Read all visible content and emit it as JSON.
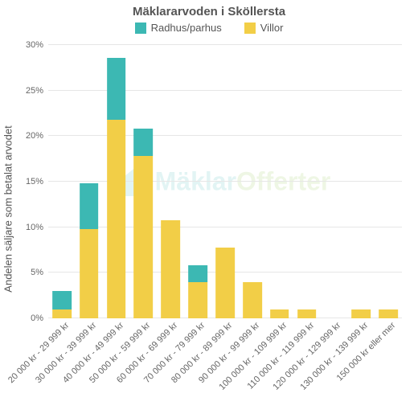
{
  "chart": {
    "type": "stacked-bar",
    "title": "Mäklararvoden i Sköllersta",
    "title_fontsize": 15,
    "ylabel": "Andelen säljare som betalat arvodet",
    "ylabel_fontsize": 13,
    "background_color": "#ffffff",
    "grid_color": "#e6e6e6",
    "axis_label_color": "#666666",
    "tick_fontsize": 11,
    "ylim_max_pct": 30,
    "ytick_step_pct": 5,
    "ytick_suffix": "%",
    "bar_width_pct_of_slot": 70,
    "series": [
      {
        "key": "villor",
        "label": "Villor",
        "color": "#f2ce47"
      },
      {
        "key": "radhus",
        "label": "Radhus/parhus",
        "color": "#3cb8b3"
      }
    ],
    "legend_order": [
      "radhus",
      "villor"
    ],
    "categories": [
      "20 000 kr - 29 999 kr",
      "30 000 kr - 39 999 kr",
      "40 000 kr - 49 999 kr",
      "50 000 kr - 59 999 kr",
      "60 000 kr - 69 999 kr",
      "70 000 kr - 79 999 kr",
      "80 000 kr - 89 999 kr",
      "90 000 kr - 99 999 kr",
      "100 000 kr - 109 999 kr",
      "110 000 kr - 119 999 kr",
      "120 000 kr - 129 999 kr",
      "130 000 kr - 139 999 kr",
      "150 000 kr eller mer"
    ],
    "values": {
      "villor": [
        1.0,
        9.8,
        21.8,
        17.8,
        10.8,
        4.0,
        7.8,
        4.0,
        1.0,
        1.0,
        0.0,
        1.0,
        1.0
      ],
      "radhus": [
        2.0,
        5.0,
        6.8,
        3.0,
        0.0,
        1.8,
        0.0,
        0.0,
        0.0,
        0.0,
        0.0,
        0.0,
        0.0
      ]
    },
    "watermark": {
      "text_a": "Mäklar",
      "text_b": "Offerter",
      "color_a": "#3cb8b3",
      "color_b": "#8bc34a",
      "fontsize": 32
    }
  }
}
